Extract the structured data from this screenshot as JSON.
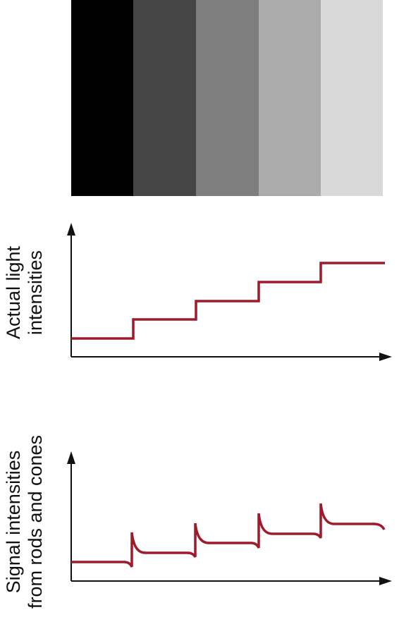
{
  "gray_bars": {
    "fills": [
      "#000000",
      "#454545",
      "#7e7e7e",
      "#ababab",
      "#d9d9d9"
    ]
  },
  "signal_color": "#a01a2c",
  "axis_color": "#111111",
  "top_graph": {
    "ylabel_line1": "Actual light",
    "ylabel_line2": "intensities",
    "steps": [
      1,
      2,
      3,
      4,
      5
    ]
  },
  "bottom_graph": {
    "ylabel_line1": "Signal intensities",
    "ylabel_line2": "from rods and cones",
    "steps": [
      1,
      2,
      3,
      4,
      5
    ],
    "overshoot": true
  }
}
